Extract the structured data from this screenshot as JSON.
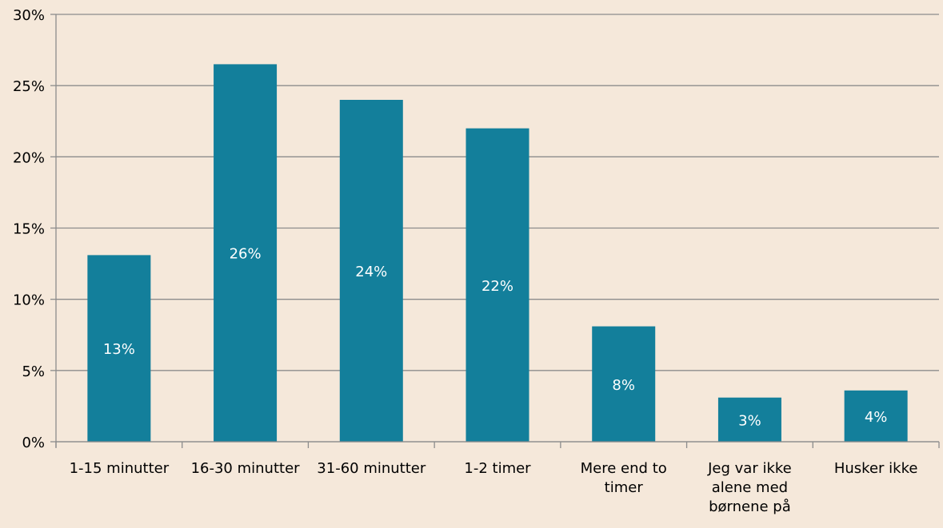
{
  "colors": {
    "background": "#f5e8da",
    "bar": "#137f9b",
    "grid": "#8c8c8c",
    "axis_text": "#000000",
    "data_label": "#ffffff"
  },
  "chart_data": {
    "type": "bar",
    "title": "",
    "xlabel": "",
    "ylabel": "",
    "categories": [
      [
        "1-15 minutter"
      ],
      [
        "16-30 minutter"
      ],
      [
        "31-60 minutter"
      ],
      [
        "1-2 timer"
      ],
      [
        "Mere end to",
        "timer"
      ],
      [
        "Jeg var ikke",
        "alene med",
        "børnene på"
      ],
      [
        "Husker ikke"
      ]
    ],
    "values": [
      13.1,
      26.5,
      24.0,
      22.0,
      8.1,
      3.1,
      3.6
    ],
    "data_labels": [
      "13%",
      "26%",
      "24%",
      "22%",
      "8%",
      "3%",
      "4%"
    ],
    "ylim": [
      0,
      30
    ],
    "yticks": [
      0,
      5,
      10,
      15,
      20,
      25,
      30
    ],
    "ytick_labels": [
      "0%",
      "5%",
      "10%",
      "15%",
      "20%",
      "25%",
      "30%"
    ],
    "grid": true,
    "legend": "none"
  }
}
